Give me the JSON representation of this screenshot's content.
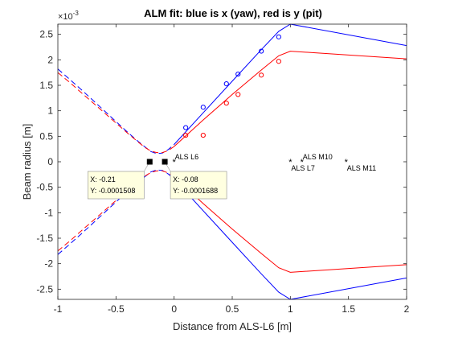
{
  "chart_data": {
    "type": "line",
    "title": "ALM fit: blue is x (yaw), red is y (pit)",
    "xlabel": "Distance from ALS-L6 [m]",
    "ylabel": "Beam radius [m]",
    "y_exponent_label": "×10",
    "y_exponent": "-3",
    "xlim": [
      -1,
      2
    ],
    "ylim": [
      -2.7,
      2.7
    ],
    "x_ticks": [
      -1,
      -0.5,
      0,
      0.5,
      1,
      1.5,
      2
    ],
    "x_tick_labels": [
      "-1",
      "-0.5",
      "0",
      "0.5",
      "1",
      "1.5",
      "2"
    ],
    "y_ticks": [
      -2.5,
      -2,
      -1.5,
      -1,
      -0.5,
      0,
      0.5,
      1,
      1.5,
      2,
      2.5
    ],
    "y_tick_labels": [
      "-2.5",
      "-2",
      "-1.5",
      "-1",
      "-0.5",
      "0",
      "0.5",
      "1",
      "1.5",
      "2",
      "2.5"
    ],
    "grid": false,
    "colors": {
      "x_yaw": "#0000ff",
      "y_pitch": "#ff0000",
      "markers": "#000000"
    },
    "series": [
      {
        "color": "#0000ff",
        "dashed_upper": {
          "x": [
            -1,
            -0.9,
            -0.8,
            -0.7,
            -0.6,
            -0.5,
            -0.4,
            -0.3,
            -0.25,
            -0.2,
            -0.15,
            -0.1,
            -0.05,
            0
          ],
          "y": [
            1.82,
            1.62,
            1.42,
            1.21,
            1.0,
            0.79,
            0.58,
            0.38,
            0.29,
            0.2,
            0.16,
            0.17,
            0.24,
            0.34
          ]
        },
        "solid_upper": {
          "x": [
            0,
            0.25,
            0.5,
            0.75,
            0.9,
            1,
            2
          ],
          "y": [
            0.34,
            0.96,
            1.58,
            2.2,
            2.56,
            2.7,
            2.28
          ]
        },
        "dashed_lower": {
          "x": [
            -1,
            -0.9,
            -0.8,
            -0.7,
            -0.6,
            -0.5,
            -0.4,
            -0.3,
            -0.25,
            -0.2,
            -0.15,
            -0.1,
            -0.05,
            0
          ],
          "y": [
            -1.82,
            -1.62,
            -1.42,
            -1.21,
            -1.0,
            -0.79,
            -0.58,
            -0.38,
            -0.29,
            -0.2,
            -0.16,
            -0.17,
            -0.24,
            -0.34
          ]
        },
        "solid_lower": {
          "x": [
            0,
            0.25,
            0.5,
            0.75,
            0.9,
            1,
            2
          ],
          "y": [
            -0.34,
            -0.96,
            -1.58,
            -2.2,
            -2.56,
            -2.7,
            -2.28
          ]
        },
        "measured": {
          "x": [
            0.1,
            0.25,
            0.45,
            0.55,
            0.75,
            0.9
          ],
          "y": [
            0.67,
            1.07,
            1.53,
            1.72,
            2.17,
            2.45
          ]
        }
      },
      {
        "color": "#ff0000",
        "dashed_upper": {
          "x": [
            -1,
            -0.9,
            -0.8,
            -0.7,
            -0.6,
            -0.5,
            -0.4,
            -0.3,
            -0.25,
            -0.2,
            -0.15,
            -0.1,
            -0.05,
            0
          ],
          "y": [
            1.75,
            1.56,
            1.36,
            1.16,
            0.96,
            0.76,
            0.56,
            0.37,
            0.28,
            0.21,
            0.18,
            0.18,
            0.22,
            0.3
          ]
        },
        "solid_upper": {
          "x": [
            0,
            0.25,
            0.5,
            0.75,
            0.9,
            1,
            2
          ],
          "y": [
            0.3,
            0.82,
            1.32,
            1.8,
            2.08,
            2.17,
            2.02
          ]
        },
        "dashed_lower": {
          "x": [
            -1,
            -0.9,
            -0.8,
            -0.7,
            -0.6,
            -0.5,
            -0.4,
            -0.3,
            -0.25,
            -0.2,
            -0.15,
            -0.1,
            -0.05,
            0
          ],
          "y": [
            -1.75,
            -1.56,
            -1.36,
            -1.16,
            -0.96,
            -0.76,
            -0.56,
            -0.37,
            -0.28,
            -0.21,
            -0.18,
            -0.18,
            -0.22,
            -0.3
          ]
        },
        "solid_lower": {
          "x": [
            0,
            0.25,
            0.5,
            0.75,
            0.9,
            1,
            2
          ],
          "y": [
            -0.3,
            -0.82,
            -1.32,
            -1.8,
            -2.08,
            -2.17,
            -2.02
          ]
        },
        "measured": {
          "x": [
            0.1,
            0.25,
            0.45,
            0.55,
            0.75,
            0.9
          ],
          "y": [
            0.52,
            0.52,
            1.15,
            1.32,
            1.7,
            1.97
          ]
        }
      }
    ],
    "elements": [
      {
        "label": "ALS L6",
        "x": 0,
        "y": 0,
        "label_pos": "above-right"
      },
      {
        "label": "ALS L7",
        "x": 1,
        "y": 0,
        "label_pos": "below-right"
      },
      {
        "label": "ALS M10",
        "x": 1.1,
        "y": 0,
        "label_pos": "above-right"
      },
      {
        "label": "ALS M11",
        "x": 1.48,
        "y": 0,
        "label_pos": "below-right"
      }
    ],
    "waists": [
      {
        "x": -0.21,
        "y": -0.0001508
      },
      {
        "x": -0.08,
        "y": -0.0001688
      }
    ],
    "datatips": [
      {
        "x_text": "X: -0.21",
        "y_text": "Y: -0.0001508"
      },
      {
        "x_text": "X: -0.08",
        "y_text": "Y: -0.0001688"
      }
    ]
  }
}
